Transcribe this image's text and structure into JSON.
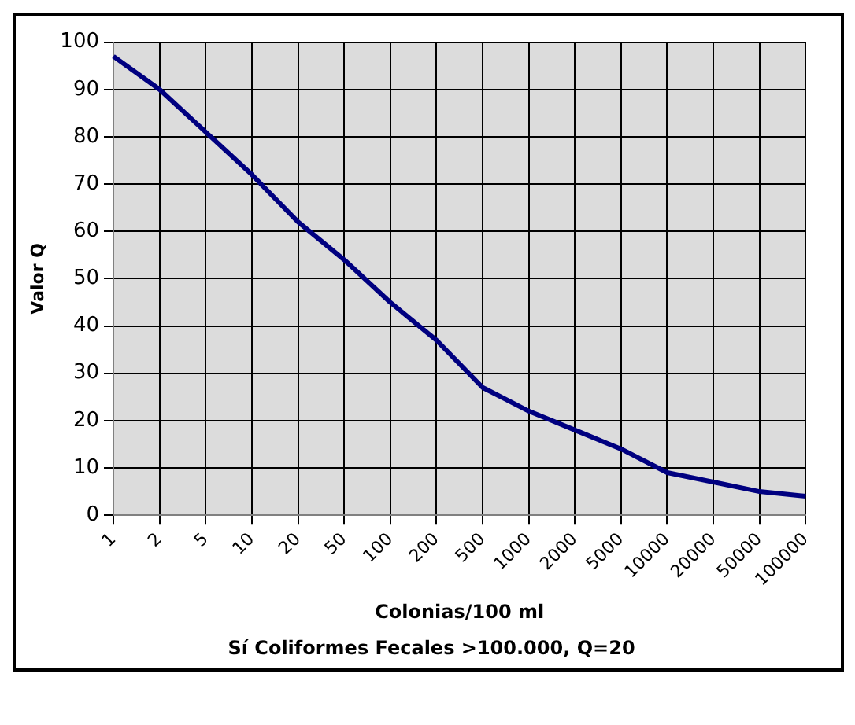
{
  "chart_data": {
    "type": "line",
    "xlabel": "Colonias/100 ml",
    "ylabel": "Valor Q",
    "annotations": [
      "Sí Coliformes Fecales >100.000, Q=20"
    ],
    "categories": [
      "1",
      "2",
      "5",
      "10",
      "20",
      "50",
      "100",
      "200",
      "500",
      "1000",
      "2000",
      "5000",
      "10000",
      "20000",
      "50000",
      "100000"
    ],
    "series": [
      {
        "color": "#000080",
        "values": [
          97,
          90,
          81,
          72,
          62,
          54,
          45,
          37,
          27,
          22,
          18,
          14,
          9,
          7,
          5,
          4
        ]
      }
    ],
    "ylim": [
      0,
      100
    ],
    "yticks": [
      0,
      10,
      20,
      30,
      40,
      50,
      60,
      70,
      80,
      90,
      100
    ],
    "grid": true,
    "legend": false,
    "marker": "none",
    "line_style": "solid"
  }
}
